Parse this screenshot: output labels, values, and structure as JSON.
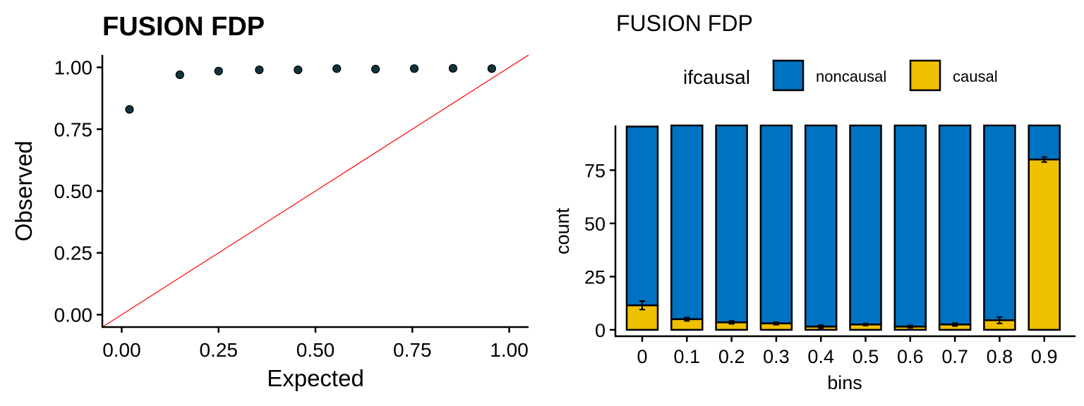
{
  "chart_data": [
    {
      "type": "scatter",
      "title": "FUSION FDP",
      "xlabel": "Expected",
      "ylabel": "Observed",
      "xlim": [
        -0.05,
        1.05
      ],
      "ylim": [
        -0.05,
        1.05
      ],
      "xticks": [
        0.0,
        0.25,
        0.5,
        0.75,
        1.0
      ],
      "xtick_labels": [
        "0.00",
        "0.25",
        "0.50",
        "0.75",
        "1.00"
      ],
      "yticks": [
        0.0,
        0.25,
        0.5,
        0.75,
        1.0
      ],
      "ytick_labels": [
        "0.00",
        "0.25",
        "0.50",
        "0.75",
        "1.00"
      ],
      "points": [
        {
          "x": 0.02,
          "y": 0.83
        },
        {
          "x": 0.15,
          "y": 0.97
        },
        {
          "x": 0.25,
          "y": 0.985
        },
        {
          "x": 0.355,
          "y": 0.99
        },
        {
          "x": 0.455,
          "y": 0.99
        },
        {
          "x": 0.555,
          "y": 0.995
        },
        {
          "x": 0.655,
          "y": 0.993
        },
        {
          "x": 0.755,
          "y": 0.995
        },
        {
          "x": 0.855,
          "y": 0.996
        },
        {
          "x": 0.955,
          "y": 0.995
        }
      ],
      "reference_line": {
        "from": [
          -0.05,
          -0.05
        ],
        "to": [
          1.05,
          1.05
        ],
        "color": "#ff0000"
      },
      "point_color": "#0e3440",
      "grid": false
    },
    {
      "type": "bar",
      "stacked": true,
      "title": "FUSION FDP",
      "xlabel": "bins",
      "ylabel": "count",
      "ylim": [
        -3,
        96
      ],
      "yticks": [
        0,
        25,
        50,
        75
      ],
      "yticks_labels": [
        "0",
        "25",
        "50",
        "75"
      ],
      "categories": [
        "0",
        "0.1",
        "0.2",
        "0.3",
        "0.4",
        "0.5",
        "0.6",
        "0.7",
        "0.8",
        "0.9"
      ],
      "legend_title": "ifcausal",
      "legend_position": "top",
      "series": [
        {
          "name": "noncausal",
          "color": "#0072c2",
          "values": [
            84,
            95,
            96,
            96.5,
            98.5,
            97.5,
            98.5,
            97.5,
            95,
            16
          ]
        },
        {
          "name": "causal",
          "color": "#efc000",
          "values": [
            11.5,
            5,
            3.5,
            3,
            1.5,
            2.5,
            1.5,
            2.5,
            4.5,
            80
          ],
          "error": [
            {
              "low": 9.5,
              "high": 13.5
            },
            {
              "low": 4.2,
              "high": 5.8
            },
            {
              "low": 2.8,
              "high": 4.2
            },
            {
              "low": 2.4,
              "high": 3.6
            },
            {
              "low": 0.8,
              "high": 2.2
            },
            {
              "low": 2.0,
              "high": 3.0
            },
            {
              "low": 0.9,
              "high": 2.1
            },
            {
              "low": 1.8,
              "high": 3.2
            },
            {
              "low": 3.0,
              "high": 6.0
            },
            {
              "low": 78.8,
              "high": 81.2
            }
          ]
        }
      ],
      "grid": false
    }
  ]
}
